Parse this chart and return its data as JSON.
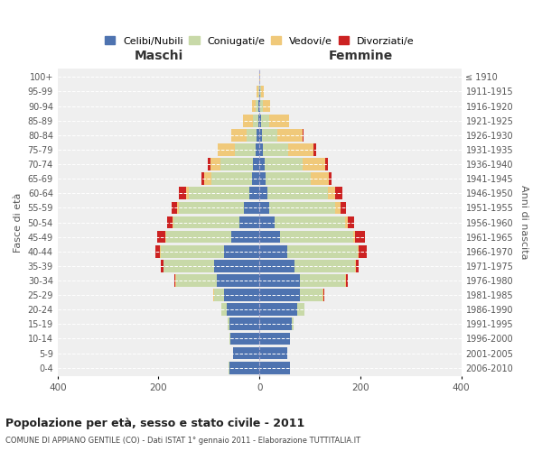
{
  "age_groups": [
    "0-4",
    "5-9",
    "10-14",
    "15-19",
    "20-24",
    "25-29",
    "30-34",
    "35-39",
    "40-44",
    "45-49",
    "50-54",
    "55-59",
    "60-64",
    "65-69",
    "70-74",
    "75-79",
    "80-84",
    "85-89",
    "90-94",
    "95-99",
    "100+"
  ],
  "birth_years": [
    "2006-2010",
    "2001-2005",
    "1996-2000",
    "1991-1995",
    "1986-1990",
    "1981-1985",
    "1976-1980",
    "1971-1975",
    "1966-1970",
    "1961-1965",
    "1956-1960",
    "1951-1955",
    "1946-1950",
    "1941-1945",
    "1936-1940",
    "1931-1935",
    "1926-1930",
    "1921-1925",
    "1916-1920",
    "1911-1915",
    "≤ 1910"
  ],
  "colors": {
    "celibi": "#4e73b0",
    "coniugati": "#c8d9a8",
    "vedovi": "#f0c97a",
    "divorziati": "#cc2222"
  },
  "males": {
    "celibi": [
      60,
      52,
      58,
      60,
      65,
      70,
      85,
      90,
      70,
      55,
      40,
      30,
      20,
      15,
      12,
      8,
      5,
      3,
      2,
      1,
      0
    ],
    "coniugati": [
      1,
      1,
      1,
      3,
      10,
      20,
      80,
      100,
      125,
      130,
      130,
      130,
      120,
      80,
      65,
      40,
      20,
      10,
      5,
      1,
      0
    ],
    "vedovi": [
      0,
      0,
      0,
      0,
      1,
      1,
      1,
      1,
      2,
      2,
      3,
      4,
      5,
      15,
      20,
      35,
      30,
      20,
      8,
      3,
      0
    ],
    "divorziati": [
      0,
      0,
      0,
      0,
      0,
      0,
      2,
      5,
      10,
      15,
      10,
      10,
      15,
      5,
      5,
      0,
      0,
      0,
      0,
      0,
      0
    ]
  },
  "females": {
    "celibi": [
      60,
      55,
      60,
      65,
      75,
      80,
      80,
      70,
      55,
      40,
      30,
      20,
      15,
      12,
      10,
      7,
      5,
      4,
      2,
      1,
      0
    ],
    "coniugati": [
      1,
      1,
      1,
      3,
      15,
      45,
      90,
      120,
      140,
      145,
      140,
      130,
      120,
      90,
      75,
      50,
      30,
      15,
      5,
      2,
      0
    ],
    "vedovi": [
      0,
      0,
      0,
      0,
      0,
      1,
      1,
      1,
      2,
      4,
      6,
      10,
      15,
      35,
      45,
      50,
      50,
      40,
      15,
      5,
      2
    ],
    "divorziati": [
      0,
      0,
      0,
      0,
      0,
      2,
      5,
      5,
      15,
      20,
      12,
      12,
      15,
      5,
      5,
      5,
      2,
      0,
      0,
      0,
      0
    ]
  },
  "title": "Popolazione per età, sesso e stato civile - 2011",
  "subtitle": "COMUNE DI APPIANO GENTILE (CO) - Dati ISTAT 1° gennaio 2011 - Elaborazione TUTTITALIA.IT",
  "xlabel_left": "Maschi",
  "xlabel_right": "Femmine",
  "ylabel_left": "Fasce di età",
  "ylabel_right": "Anni di nascita",
  "xlim": 400,
  "legend_labels": [
    "Celibi/Nubili",
    "Coniugati/e",
    "Vedovi/e",
    "Divorziati/e"
  ],
  "background_color": "#ffffff",
  "axes_bg_color": "#efefef"
}
